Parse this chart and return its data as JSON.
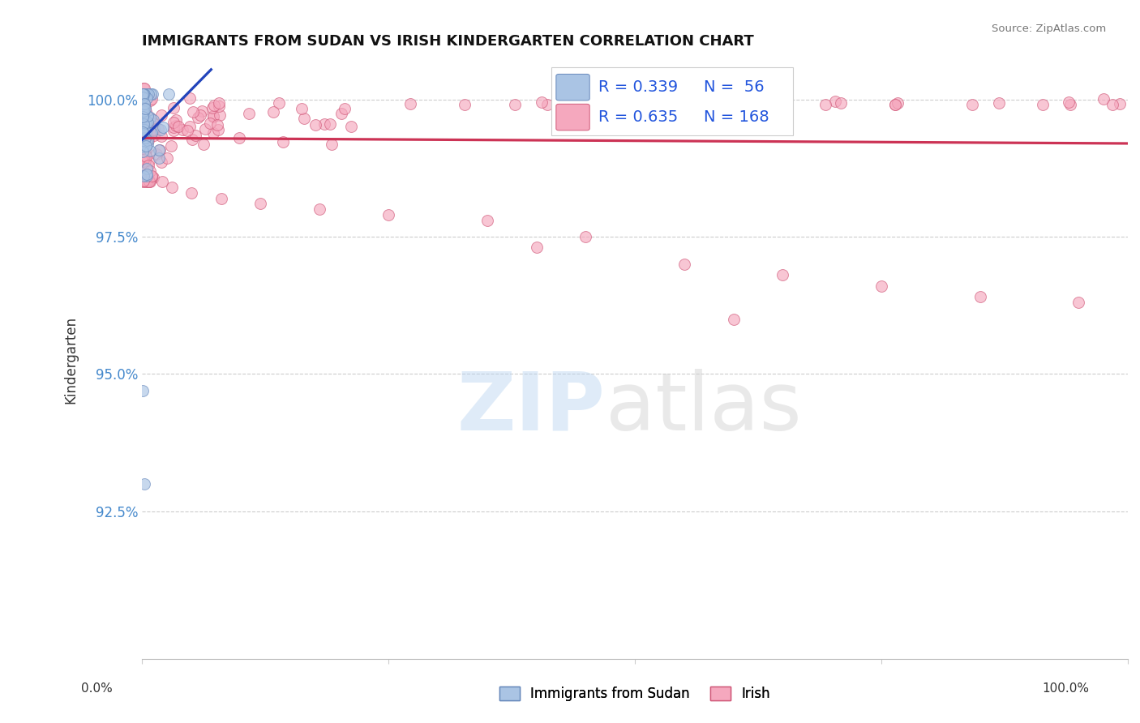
{
  "title": "IMMIGRANTS FROM SUDAN VS IRISH KINDERGARTEN CORRELATION CHART",
  "source": "Source: ZipAtlas.com",
  "ylabel": "Kindergarten",
  "xlim": [
    0.0,
    1.0
  ],
  "ylim": [
    0.898,
    1.007
  ],
  "yticks": [
    0.925,
    0.95,
    0.975,
    1.0
  ],
  "ytick_labels": [
    "92.5%",
    "95.0%",
    "97.5%",
    "100.0%"
  ],
  "legend_sudan_label": "Immigrants from Sudan",
  "legend_irish_label": "Irish",
  "sudan_color": "#aac4e4",
  "irish_color": "#f5a8be",
  "sudan_edge_color": "#6688bb",
  "irish_edge_color": "#d05878",
  "trendline_sudan_color": "#2244bb",
  "trendline_irish_color": "#cc3355",
  "background_color": "#ffffff",
  "grid_color": "#cccccc",
  "title_color": "#111111",
  "title_fontsize": 13,
  "marker_size": 100,
  "legend_R_sudan": "R = 0.339",
  "legend_N_sudan": "N =  56",
  "legend_R_irish": "R = 0.635",
  "legend_N_irish": "N = 168"
}
